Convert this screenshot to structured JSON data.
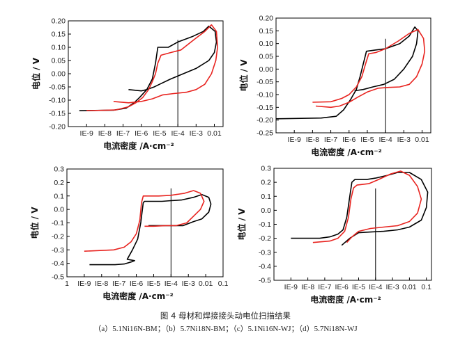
{
  "figure": {
    "caption": "图 4 母材和焊接接头动电位扫描结果",
    "subcaption": "（a）5.1Ni16N-BM；（b）5.7Ni18N-BM；（c）5.1Ni16N-WJ；（d）5.7Ni18N-WJ"
  },
  "colors": {
    "ni16": "#000000",
    "ni18": "#e8231f"
  },
  "chart_data": [
    {
      "type": "line",
      "id": "a",
      "ylabel": "电位 / V",
      "xlabel": "电流密度 /A·cm⁻²",
      "xscale": "log",
      "xlim": [
        1e-10,
        0.03
      ],
      "ylim": [
        -0.2,
        0.2
      ],
      "xticks": [
        "IE-9",
        "IE-8",
        "IE-7",
        "IE-6",
        "IE-5",
        "IE-4",
        "IE-3",
        "0.01"
      ],
      "xtick_values": [
        1e-09,
        1e-08,
        1e-07,
        1e-06,
        1e-05,
        0.0001,
        0.001,
        0.01
      ],
      "yticks": [
        "0.20",
        "0.15",
        "0.10",
        "0.05",
        "0.00",
        "-0.05",
        "-0.10",
        "-0.15",
        "-0.20"
      ],
      "ytick_values": [
        0.2,
        0.15,
        0.1,
        0.05,
        0,
        -0.05,
        -0.1,
        -0.15,
        -0.2
      ],
      "vline_x": 0.0001,
      "series": [
        {
          "name": "5.1Ni16N",
          "color": "#000000",
          "points": [
            [
              4e-10,
              -0.14
            ],
            [
              3e-08,
              -0.138
            ],
            [
              1.5e-07,
              -0.13
            ],
            [
              4e-07,
              -0.11
            ],
            [
              8e-07,
              -0.09
            ],
            [
              2e-06,
              -0.06
            ],
            [
              4e-06,
              -0.02
            ],
            [
              6e-06,
              0.04
            ],
            [
              8e-06,
              0.1
            ],
            [
              3e-05,
              0.1
            ],
            [
              0.0001,
              0.12
            ],
            [
              0.0006,
              0.14
            ],
            [
              0.0025,
              0.16
            ],
            [
              0.005,
              0.18
            ],
            [
              0.011,
              0.16
            ],
            [
              0.013,
              0.12
            ],
            [
              0.01,
              0.08
            ],
            [
              0.005,
              0.05
            ],
            [
              0.001,
              0.02
            ],
            [
              0.0002,
              0.0
            ],
            [
              4e-05,
              -0.02
            ],
            [
              1e-05,
              -0.04
            ],
            [
              5e-06,
              -0.05
            ],
            [
              2e-06,
              -0.06
            ],
            [
              1e-06,
              -0.065
            ],
            [
              2e-07,
              -0.06
            ]
          ]
        },
        {
          "name": "5.7Ni18N",
          "color": "#e8231f",
          "points": [
            [
              1e-09,
              -0.14
            ],
            [
              4e-08,
              -0.137
            ],
            [
              2e-07,
              -0.125
            ],
            [
              5e-07,
              -0.11
            ],
            [
              1.2e-06,
              -0.09
            ],
            [
              2.5e-06,
              -0.06
            ],
            [
              4e-06,
              -0.03
            ],
            [
              6e-06,
              0.0
            ],
            [
              8e-06,
              0.04
            ],
            [
              1.2e-05,
              0.07
            ],
            [
              4e-05,
              0.08
            ],
            [
              0.00015,
              0.09
            ],
            [
              0.0008,
              0.13
            ],
            [
              0.003,
              0.16
            ],
            [
              0.007,
              0.185
            ],
            [
              0.013,
              0.16
            ],
            [
              0.015,
              0.1
            ],
            [
              0.012,
              0.05
            ],
            [
              0.007,
              0.0
            ],
            [
              0.003,
              -0.04
            ],
            [
              0.001,
              -0.06
            ],
            [
              0.0003,
              -0.07
            ],
            [
              6e-05,
              -0.075
            ],
            [
              1.5e-05,
              -0.08
            ],
            [
              4e-06,
              -0.095
            ],
            [
              1e-06,
              -0.105
            ],
            [
              2e-07,
              -0.11
            ],
            [
              3e-08,
              -0.105
            ]
          ]
        }
      ]
    },
    {
      "type": "line",
      "id": "b",
      "ylabel": "电位 / V",
      "xlabel": "电流密度 /A·cm⁻²",
      "xscale": "log",
      "xlim": [
        1e-10,
        0.03
      ],
      "ylim": [
        -0.25,
        0.2
      ],
      "xticks": [
        "IE-9",
        "IE-8",
        "IE-7",
        "IE-6",
        "IE-5",
        "IE-4",
        "IE-3",
        "0.01"
      ],
      "xtick_values": [
        1e-09,
        1e-08,
        1e-07,
        1e-06,
        1e-05,
        0.0001,
        0.001,
        0.01
      ],
      "yticks": [
        "0.20",
        "0.15",
        "0.10",
        "0.05",
        "0.00",
        "-0.05",
        "-0.10",
        "-0.15",
        "-0.20",
        "-0.25"
      ],
      "ytick_values": [
        0.2,
        0.15,
        0.1,
        0.05,
        0,
        -0.05,
        -0.1,
        -0.15,
        -0.2,
        -0.25
      ],
      "vline_x": 0.0001,
      "series": [
        {
          "name": "5.1Ni16N",
          "color": "#000000",
          "points": [
            [
              1e-10,
              -0.195
            ],
            [
              3e-08,
              -0.192
            ],
            [
              2e-07,
              -0.185
            ],
            [
              5e-07,
              -0.16
            ],
            [
              1.2e-06,
              -0.12
            ],
            [
              2.5e-06,
              -0.08
            ],
            [
              4e-06,
              -0.03
            ],
            [
              6e-06,
              0.02
            ],
            [
              9e-06,
              0.07
            ],
            [
              3e-05,
              0.075
            ],
            [
              0.0001,
              0.08
            ],
            [
              0.0006,
              0.1
            ],
            [
              0.002,
              0.13
            ],
            [
              0.004,
              0.165
            ],
            [
              0.006,
              0.15
            ],
            [
              0.005,
              0.1
            ],
            [
              0.003,
              0.05
            ],
            [
              0.001,
              0.0
            ],
            [
              0.0003,
              -0.04
            ],
            [
              8e-05,
              -0.06
            ],
            [
              2e-05,
              -0.07
            ],
            [
              6e-06,
              -0.08
            ],
            [
              2e-06,
              -0.085
            ]
          ]
        },
        {
          "name": "5.7Ni18N",
          "color": "#e8231f",
          "points": [
            [
              1e-08,
              -0.13
            ],
            [
              1e-07,
              -0.128
            ],
            [
              4e-07,
              -0.115
            ],
            [
              1e-06,
              -0.1
            ],
            [
              2.5e-06,
              -0.07
            ],
            [
              5e-06,
              -0.03
            ],
            [
              8e-06,
              0.02
            ],
            [
              1.2e-05,
              0.06
            ],
            [
              3e-05,
              0.065
            ],
            [
              0.0001,
              0.08
            ],
            [
              0.0005,
              0.11
            ],
            [
              0.002,
              0.14
            ],
            [
              0.006,
              0.155
            ],
            [
              0.012,
              0.12
            ],
            [
              0.014,
              0.07
            ],
            [
              0.01,
              0.02
            ],
            [
              0.005,
              -0.03
            ],
            [
              0.002,
              -0.06
            ],
            [
              0.0006,
              -0.07
            ],
            [
              0.00015,
              -0.072
            ],
            [
              4e-05,
              -0.075
            ],
            [
              1e-05,
              -0.09
            ],
            [
              3e-06,
              -0.11
            ],
            [
              1e-06,
              -0.13
            ],
            [
              3e-07,
              -0.145
            ],
            [
              1e-07,
              -0.15
            ],
            [
              1.5e-08,
              -0.145
            ]
          ]
        }
      ]
    },
    {
      "type": "line",
      "id": "c",
      "ylabel": "电位 / V",
      "xlabel": "电流密度 /A·cm⁻²",
      "xscale": "log",
      "xlim": [
        1e-10,
        0.1
      ],
      "ylim": [
        -0.5,
        0.3
      ],
      "xticks": [
        "1",
        "IE-9",
        "IE-8",
        "IE-7",
        "IE-6",
        "IE-5",
        "IE-4",
        "IE-3",
        "0.01",
        "0.1"
      ],
      "xtick_values": [
        1e-10,
        1e-09,
        1e-08,
        1e-07,
        1e-06,
        1e-05,
        0.0001,
        0.001,
        0.01,
        0.1
      ],
      "yticks": [
        "0.3",
        "0.2",
        "0.1",
        "0.0",
        "-0.1",
        "-0.2",
        "-0.3",
        "-0.4",
        "-0.5"
      ],
      "ytick_values": [
        0.3,
        0.2,
        0.1,
        0,
        -0.1,
        -0.2,
        -0.3,
        -0.4,
        -0.5
      ],
      "vline_x": 0.0001,
      "series": [
        {
          "name": "5.1Ni16N",
          "color": "#000000",
          "points": [
            [
              2e-09,
              -0.41
            ],
            [
              6e-08,
              -0.41
            ],
            [
              2e-07,
              -0.405
            ],
            [
              5e-07,
              -0.39
            ],
            [
              8e-07,
              -0.38
            ],
            [
              3e-07,
              -0.37
            ],
            [
              6e-07,
              -0.3
            ],
            [
              1.2e-06,
              -0.22
            ],
            [
              1.8e-06,
              -0.1
            ],
            [
              2.5e-06,
              0.05
            ],
            [
              3e-06,
              0.06
            ],
            [
              3e-05,
              0.06
            ],
            [
              0.0001,
              0.065
            ],
            [
              0.0004,
              0.07
            ],
            [
              0.002,
              0.09
            ],
            [
              0.006,
              0.11
            ],
            [
              0.015,
              0.09
            ],
            [
              0.02,
              0.04
            ],
            [
              0.015,
              -0.02
            ],
            [
              0.006,
              -0.07
            ],
            [
              0.002,
              -0.09
            ],
            [
              0.0005,
              -0.12
            ],
            [
              0.0001,
              -0.12
            ],
            [
              2e-05,
              -0.12
            ],
            [
              5e-06,
              -0.12
            ]
          ]
        },
        {
          "name": "5.7Ni18N",
          "color": "#e8231f",
          "points": [
            [
              1e-09,
              -0.31
            ],
            [
              5e-08,
              -0.3
            ],
            [
              2e-07,
              -0.28
            ],
            [
              5e-07,
              -0.24
            ],
            [
              1e-06,
              -0.18
            ],
            [
              1.6e-06,
              -0.08
            ],
            [
              2e-06,
              0.05
            ],
            [
              2.5e-06,
              0.1
            ],
            [
              2e-05,
              0.1
            ],
            [
              0.0001,
              0.105
            ],
            [
              0.0006,
              0.12
            ],
            [
              0.002,
              0.14
            ],
            [
              0.005,
              0.12
            ],
            [
              0.008,
              0.06
            ],
            [
              0.005,
              0.0
            ],
            [
              0.002,
              -0.05
            ],
            [
              0.0008,
              -0.1
            ],
            [
              0.0002,
              -0.12
            ],
            [
              5e-05,
              -0.12
            ],
            [
              1e-05,
              -0.125
            ],
            [
              3e-06,
              -0.125
            ]
          ]
        }
      ]
    },
    {
      "type": "line",
      "id": "d",
      "ylabel": "电位 / V",
      "xlabel": "电流密度 /A·cm⁻²",
      "xscale": "log",
      "xlim": [
        1e-10,
        0.2
      ],
      "ylim": [
        -0.5,
        0.3
      ],
      "xticks": [
        "IE-9",
        "IE-8",
        "IE-7",
        "IE-6",
        "IE-5",
        "IE-4",
        "IE-3",
        "0.01",
        "0.1"
      ],
      "xtick_values": [
        1e-09,
        1e-08,
        1e-07,
        1e-06,
        1e-05,
        0.0001,
        0.001,
        0.01,
        0.1
      ],
      "yticks": [
        "0.3",
        "0.2",
        "0.1",
        "0.0",
        "-0.1",
        "-0.2",
        "-0.3",
        "-0.4",
        "-0.5"
      ],
      "ytick_values": [
        0.3,
        0.2,
        0.1,
        0,
        -0.1,
        -0.2,
        -0.3,
        -0.4,
        -0.5
      ],
      "vline_x": 0.0001,
      "series": [
        {
          "name": "5.1Ni16N",
          "color": "#000000",
          "points": [
            [
              1e-09,
              -0.2
            ],
            [
              5e-08,
              -0.2
            ],
            [
              2e-07,
              -0.19
            ],
            [
              6e-07,
              -0.17
            ],
            [
              1.2e-06,
              -0.14
            ],
            [
              2e-06,
              -0.05
            ],
            [
              3e-06,
              0.1
            ],
            [
              4e-06,
              0.2
            ],
            [
              6e-06,
              0.22
            ],
            [
              3e-05,
              0.22
            ],
            [
              0.0001,
              0.23
            ],
            [
              0.0005,
              0.25
            ],
            [
              0.002,
              0.27
            ],
            [
              0.01,
              0.27
            ],
            [
              0.05,
              0.22
            ],
            [
              0.12,
              0.13
            ],
            [
              0.1,
              0.02
            ],
            [
              0.05,
              -0.07
            ],
            [
              0.01,
              -0.12
            ],
            [
              0.002,
              -0.14
            ],
            [
              0.0003,
              -0.15
            ],
            [
              5e-05,
              -0.155
            ],
            [
              1e-05,
              -0.16
            ],
            [
              3e-06,
              -0.2
            ],
            [
              1e-06,
              -0.25
            ]
          ]
        },
        {
          "name": "5.7Ni18N",
          "color": "#e8231f",
          "points": [
            [
              2e-08,
              -0.23
            ],
            [
              2e-07,
              -0.22
            ],
            [
              6e-07,
              -0.2
            ],
            [
              1.5e-06,
              -0.15
            ],
            [
              2.5e-06,
              -0.05
            ],
            [
              3.5e-06,
              0.08
            ],
            [
              5e-06,
              0.16
            ],
            [
              8e-06,
              0.18
            ],
            [
              4e-05,
              0.19
            ],
            [
              0.00015,
              0.22
            ],
            [
              0.0008,
              0.26
            ],
            [
              0.003,
              0.28
            ],
            [
              0.01,
              0.25
            ],
            [
              0.03,
              0.17
            ],
            [
              0.05,
              0.08
            ],
            [
              0.03,
              -0.02
            ],
            [
              0.01,
              -0.08
            ],
            [
              0.002,
              -0.11
            ],
            [
              0.0003,
              -0.12
            ],
            [
              5e-05,
              -0.13
            ],
            [
              1e-05,
              -0.15
            ],
            [
              4e-06,
              -0.19
            ],
            [
              2e-06,
              -0.23
            ]
          ]
        }
      ]
    }
  ]
}
